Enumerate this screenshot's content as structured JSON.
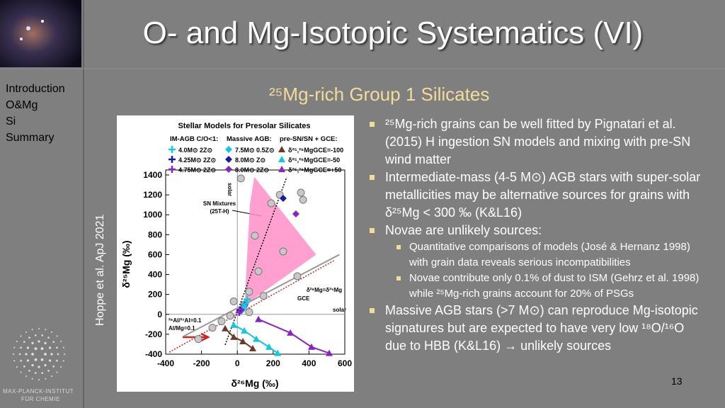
{
  "slide": {
    "title": "O- and Mg-Isotopic Systematics (VI)",
    "nav": [
      "Introduction",
      "O&Mg",
      "Si",
      "Summary"
    ],
    "logo": [
      "MAX-PLANCK-INSTITUT",
      "FÜR CHEMIE"
    ],
    "subtitle": "²⁵Mg-rich Group 1 Silicates",
    "citation": "Hoppe et al. ApJ 2021",
    "bullets": [
      {
        "text": "²⁵Mg-rich grains can be well fitted by Pignatari et al. (2015) H ingestion SN models and mixing with pre-SN wind matter",
        "sub": []
      },
      {
        "text": "Intermediate-mass (4-5 M⊙) AGB stars  with super-solar metallicities may be alternative sources for grains with δ²⁵Mg < 300 ‰ (K&L16)",
        "sub": []
      },
      {
        "text": "Novae are unlikely sources:",
        "sub": [
          "Quantitative comparisons of models (José & Hernanz 1998) with grain data  reveals serious incompatibilities",
          "Novae contribute only 0.1% of dust to ISM (Gehrz et al. 1998) while ²⁵Mg-rich grains account for 20% of PSGs"
        ]
      },
      {
        "text": "Massive AGB stars (>7 M⊙) can reproduce Mg-isotopic signatures but are expected to have very low ¹⁸O/¹⁶O due to HBB (K&L16) → unlikely sources",
        "sub": []
      }
    ],
    "page_number": "13"
  },
  "chart_data": {
    "type": "scatter",
    "title": "Stellar Models for Presolar Silicates",
    "legend_headers": [
      "IM-AGB C/O<1:",
      "Massive AGB:",
      "pre-SN/SN + GCE:"
    ],
    "xlabel": "δ²⁶Mg (‰)",
    "ylabel": "δ²⁵Mg (‰)",
    "xlim": [
      -400,
      600
    ],
    "ylim": [
      -400,
      1400
    ],
    "xticks": [
      -400,
      -200,
      0,
      200,
      400,
      600
    ],
    "yticks": [
      -400,
      -200,
      0,
      200,
      400,
      600,
      800,
      1000,
      1200,
      1400
    ],
    "annotations": [
      "solar",
      "SN Mixtures",
      "(25T-H)",
      "δ²⁶Mg=δ²⁵Mg",
      "GCE",
      "solar",
      "²⁶Al/²⁷Al=0.1",
      "Al/Mg=0.1"
    ],
    "series": [
      {
        "name": "4.0M⊙ 2Z⊙",
        "color": "#10c8e0",
        "marker": "cross",
        "x": [
          20,
          35,
          45,
          55
        ],
        "values": [
          30,
          70,
          110,
          150
        ]
      },
      {
        "name": "4.25M⊙ 2Z⊙",
        "color": "#1a1a9a",
        "marker": "cross",
        "x": [
          15
        ],
        "values": [
          40
        ]
      },
      {
        "name": "4.75M⊙ 2Z⊙",
        "color": "#8a22c8",
        "marker": "cross",
        "x": [
          10,
          25,
          40
        ],
        "values": [
          20,
          50,
          90
        ]
      },
      {
        "name": "7.5M⊙ 0.5Z⊙",
        "color": "#10c8e0",
        "marker": "diamond",
        "x": [
          40
        ],
        "values": [
          80
        ]
      },
      {
        "name": "8.0M⊙ Z⊙",
        "color": "#1a1a9a",
        "marker": "diamond",
        "x": [
          256
        ],
        "values": [
          1165
        ]
      },
      {
        "name": "8.0M⊙ 2Z⊙",
        "color": "#8a22c8",
        "marker": "diamond",
        "x": [
          327
        ],
        "values": [
          1009
        ]
      },
      {
        "name": "δ²⁵,²⁶MgGCE=-100",
        "color": "#6b3a2a",
        "marker": "triangle",
        "line": true,
        "x": [
          -68,
          -20,
          31,
          86
        ],
        "values": [
          -142,
          -228,
          -272,
          -343
        ]
      },
      {
        "name": "δ²⁵,²⁶MgGCE=-50",
        "color": "#10c8e0",
        "marker": "triangle",
        "line": true,
        "x": [
          -20,
          39,
          106,
          177,
          225
        ],
        "values": [
          -107,
          -164,
          -248,
          -328,
          -390
        ]
      },
      {
        "name": "δ²⁵,²⁶MgGCE=+50",
        "color": "#8a22c8",
        "marker": "triangle",
        "line": true,
        "x": [
          118,
          296,
          414,
          513
        ],
        "values": [
          -50,
          -186,
          -328,
          -390
        ]
      },
      {
        "color": "#c8c8c8",
        "marker": "circle",
        "x": [
          20,
          355,
          367,
          189,
          237,
          98,
          256,
          118,
          66,
          146,
          335,
          -20,
          -40,
          -88,
          -218,
          39,
          -139,
          66
        ],
        "values": [
          1365,
          1222,
          1150,
          1115,
          1200,
          790,
          632,
          432,
          228,
          185,
          383,
          130,
          -15,
          -70,
          -248,
          97,
          -134,
          22
        ]
      },
      {
        "color": "#ff8fc8",
        "marker": "polygon",
        "x": [
          95,
          440,
          40,
          70
        ],
        "values": [
          1380,
          600,
          90,
          1100
        ]
      },
      {
        "color": "#000000",
        "marker": "dotted",
        "x": [
          -68,
          276
        ],
        "values": [
          -307,
          1379
        ]
      },
      {
        "color": "#d42020",
        "marker": "dotted",
        "x": [
          -380,
          540
        ],
        "values": [
          -380,
          540
        ]
      },
      {
        "color": "#999999",
        "marker": "line",
        "x": [
          -300,
          570
        ],
        "values": [
          -220,
          600
        ]
      }
    ]
  }
}
